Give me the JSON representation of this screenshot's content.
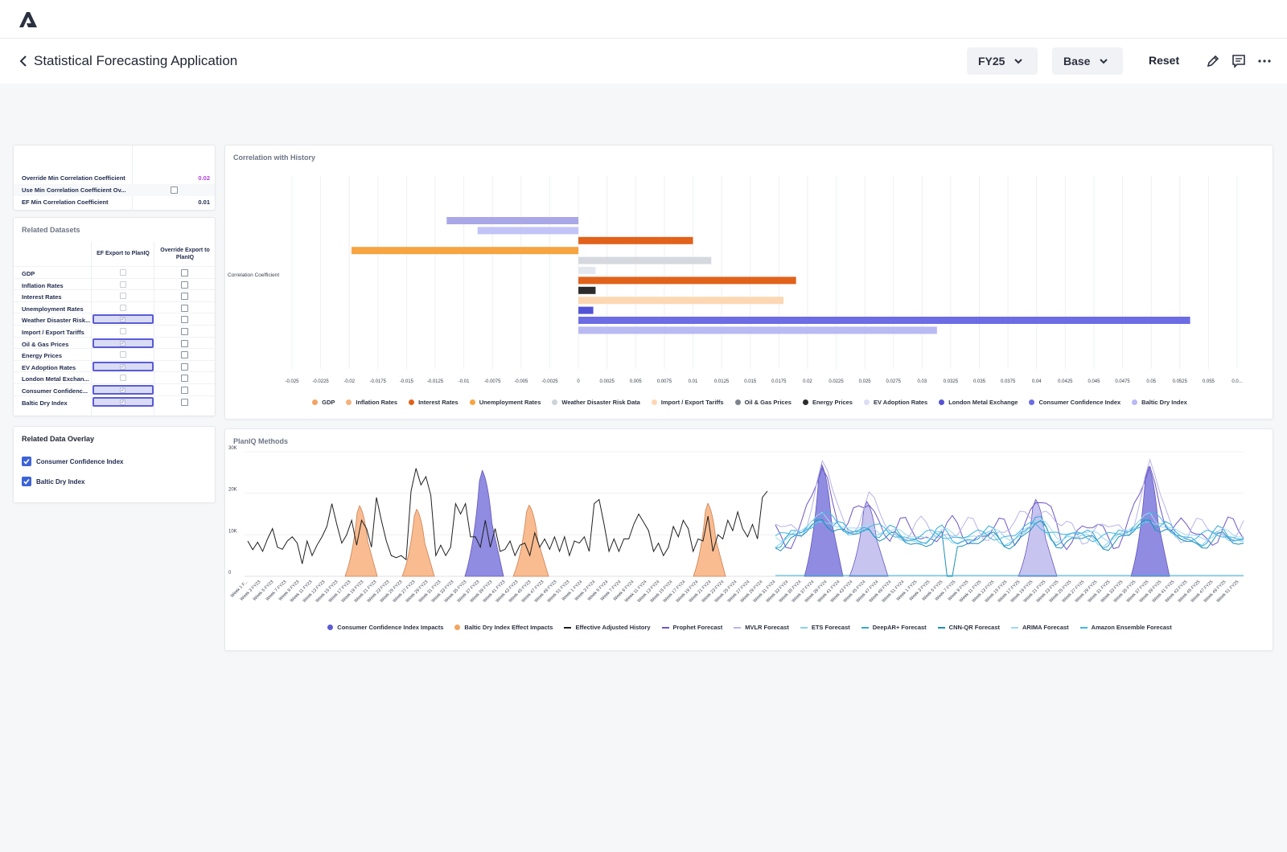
{
  "header": {
    "logo_icon": "company-logo-icon",
    "title": "Statistical Forecasting Application",
    "fiscal_year": "FY25",
    "scenario": "Base",
    "reset_label": "Reset",
    "icons": [
      "edit-pencil-icon",
      "comment-icon",
      "more-options-icon"
    ]
  },
  "settings": {
    "rows": [
      {
        "label": "Override Min Correlation Coefficient",
        "value": "0.02",
        "value_color": "#b13fd6"
      },
      {
        "label": "Use Min Correlation Coefficient Ov...",
        "value": "",
        "checkbox": true
      },
      {
        "label": "EF Min Correlation Coefficient",
        "value": "0.01"
      }
    ]
  },
  "datasets": {
    "title": "Related Datasets",
    "col1": "EF Export to PlanIQ",
    "col2": "Override Export to PlanIQ",
    "rows": [
      {
        "name": "GDP",
        "ef_export": false
      },
      {
        "name": "Inflation Rates",
        "ef_export": false
      },
      {
        "name": "Interest Rates",
        "ef_export": false
      },
      {
        "name": "Unemployment Rates",
        "ef_export": false
      },
      {
        "name": "Weather Disaster Risk...",
        "ef_export": true
      },
      {
        "name": "Import / Export Tariffs",
        "ef_export": false
      },
      {
        "name": "Oil & Gas Prices",
        "ef_export": true
      },
      {
        "name": "Energy Prices",
        "ef_export": false
      },
      {
        "name": "EV Adoption Rates",
        "ef_export": true
      },
      {
        "name": "London Metal Exchan...",
        "ef_export": false
      },
      {
        "name": "Consumer Confidenc...",
        "ef_export": true
      },
      {
        "name": "Baltic Dry Index",
        "ef_export": true
      }
    ]
  },
  "overlay": {
    "title": "Related Data Overlay",
    "items": [
      {
        "label": "Consumer Confidence Index",
        "checked": true
      },
      {
        "label": "Baltic Dry Index",
        "checked": true
      }
    ]
  },
  "chart_data": [
    {
      "type": "bar",
      "orientation": "horizontal",
      "title": "Correlation with History",
      "ylabel": "Correlation Coefficient",
      "xlim": [
        -0.025,
        0.0575
      ],
      "ticks": [
        "-0.025",
        "-0.0225",
        "-0.02",
        "-0.0175",
        "-0.015",
        "-0.0125",
        "-0.01",
        "-0.0075",
        "-0.005",
        "-0.0025",
        "0",
        "0.0025",
        "0.005",
        "0.0075",
        "0.01",
        "0.0125",
        "0.015",
        "0.0175",
        "0.02",
        "0.0225",
        "0.025",
        "0.0275",
        "0.03",
        "0.0325",
        "0.035",
        "0.0375",
        "0.04",
        "0.0425",
        "0.045",
        "0.0475",
        "0.05",
        "0.0525",
        "0.055",
        "0.0..."
      ],
      "bars": [
        {
          "value": -0.0115,
          "color": "#a9a7e6"
        },
        {
          "value": -0.0088,
          "color": "#c2c4f7"
        },
        {
          "value": 0.01,
          "color": "#e0621b"
        },
        {
          "value": -0.0198,
          "color": "#f7a441"
        },
        {
          "value": 0.0116,
          "color": "#d5d9df"
        },
        {
          "value": 0.0015,
          "color": "#e4e7ee"
        },
        {
          "value": 0.019,
          "color": "#e0621b"
        },
        {
          "value": 0.0015,
          "color": "#2b2b2b"
        },
        {
          "value": 0.0179,
          "color": "#fcd7b3"
        },
        {
          "value": 0.0013,
          "color": "#5353d6"
        },
        {
          "value": 0.0534,
          "color": "#6c6ce4"
        },
        {
          "value": 0.0313,
          "color": "#b9b9f4"
        }
      ],
      "legend": [
        {
          "name": "GDP",
          "color": "#f4a261"
        },
        {
          "name": "Inflation Rates",
          "color": "#f6b27a"
        },
        {
          "name": "Interest Rates",
          "color": "#e0621b"
        },
        {
          "name": "Unemployment Rates",
          "color": "#f7a441"
        },
        {
          "name": "Weather Disaster Risk Data",
          "color": "#ced3da"
        },
        {
          "name": "Import / Export Tariffs",
          "color": "#fcd7b3"
        },
        {
          "name": "Oil & Gas Prices",
          "color": "#7d828c"
        },
        {
          "name": "Energy Prices",
          "color": "#2b2b2b"
        },
        {
          "name": "EV Adoption Rates",
          "color": "#dcdcf5"
        },
        {
          "name": "London Metal Exchange",
          "color": "#5353d6"
        },
        {
          "name": "Consumer Confidence Index",
          "color": "#6c6ce4"
        },
        {
          "name": "Baltic Dry Index",
          "color": "#b9b9f4"
        }
      ]
    },
    {
      "type": "line",
      "title": "PlanIQ Methods",
      "ylim": [
        0,
        30000
      ],
      "yticks": [
        {
          "v": 0,
          "label": "0"
        },
        {
          "v": 10000,
          "label": "10K"
        },
        {
          "v": 20000,
          "label": "20K"
        },
        {
          "v": 30000,
          "label": "30K"
        }
      ],
      "x_labels": [
        "Week 1 F...",
        "Week 3 FY23",
        "Week 5 FY23",
        "Week 7 FY23",
        "Week 9 FY23",
        "Week 11 FY23",
        "Week 13 FY23",
        "Week 15 FY23",
        "Week 17 FY23",
        "Week 19 FY23",
        "Week 21 FY23",
        "Week 23 FY23",
        "Week 25 FY23",
        "Week 27 FY23",
        "Week 29 FY23",
        "Week 31 FY23",
        "Week 33 FY23",
        "Week 35 FY23",
        "Week 37 FY23",
        "Week 39 FY23",
        "Week 41 FY23",
        "Week 43 FY23",
        "Week 45 FY23",
        "Week 47 FY23",
        "Week 49 FY23",
        "Week 51 FY23",
        "Week 1 FY24",
        "Week 3 FY24",
        "Week 5 FY24",
        "Week 7 FY24",
        "Week 9 FY24",
        "Week 11 FY24",
        "Week 13 FY24",
        "Week 15 FY24",
        "Week 17 FY24",
        "Week 19 FY24",
        "Week 21 FY24",
        "Week 23 FY24",
        "Week 25 FY24",
        "Week 27 FY24",
        "Week 29 FY24",
        "Week 31 FY24",
        "Week 33 FY24",
        "Week 35 FY24",
        "Week 37 FY24",
        "Week 39 FY24",
        "Week 41 FY24",
        "Week 43 FY24",
        "Week 45 FY24",
        "Week 47 FY24",
        "Week 49 FY24",
        "Week 51 FY24",
        "Week 1 FY25",
        "Week 3 FY25",
        "Week 5 FY25",
        "Week 7 FY25",
        "Week 9 FY25",
        "Week 11 FY25",
        "Week 13 FY25",
        "Week 15 FY25",
        "Week 17 FY25",
        "Week 19 FY25",
        "Week 21 FY25",
        "Week 23 FY25",
        "Week 25 FY25",
        "Week 27 FY25",
        "Week 29 FY25",
        "Week 31 FY25",
        "Week 33 FY25",
        "Week 35 FY25",
        "Week 37 FY25",
        "Week 39 FY25",
        "Week 41 FY25",
        "Week 43 FY25",
        "Week 45 FY25",
        "Week 47 FY25",
        "Week 49 FY25",
        "Week 51 FY25"
      ],
      "history": [
        8500,
        6400,
        8200,
        6000,
        9000,
        11500,
        7000,
        6500,
        8500,
        9500,
        8000,
        3000,
        8500,
        5000,
        7500,
        9500,
        12000,
        17500,
        12500,
        8000,
        10000,
        13500,
        7500,
        13500,
        11500,
        7000,
        19000,
        13500,
        8500,
        5000,
        4500,
        5000,
        4000,
        20500,
        26000,
        22000,
        24000,
        19500,
        5000,
        7500,
        5000,
        7000,
        17500,
        15000,
        17500,
        9500,
        9500,
        7000,
        13500,
        7000,
        11500,
        6000,
        6500,
        8500,
        5000,
        7500,
        8000,
        5000,
        10500,
        7000,
        9000,
        6500,
        9500,
        6000,
        9500,
        5000,
        8500,
        8000,
        9500,
        6000,
        17500,
        18500,
        12500,
        6000,
        9000,
        6000,
        9000,
        9000,
        12500,
        15000,
        13000,
        11000,
        6000,
        8000,
        5000,
        7000,
        12000,
        9500,
        13500,
        11500,
        6000,
        9000,
        8500,
        14500,
        6000,
        10000,
        9000,
        13500,
        11000,
        15500,
        11500,
        9500,
        12500,
        9000,
        19000,
        20500
      ],
      "forecast_start": 0.515,
      "series": [
        {
          "name": "Consumer Confidence Index Impacts",
          "color": "#5b5bd6",
          "kind": "dot"
        },
        {
          "name": "Baltic Dry Index Effect Impacts",
          "color": "#f5a45e",
          "kind": "dot"
        },
        {
          "name": "Effective Adjusted History",
          "color": "#1f1f1f",
          "kind": "line"
        },
        {
          "name": "Prophet Forecast",
          "color": "#6f55c7",
          "kind": "line"
        },
        {
          "name": "MVLR Forecast",
          "color": "#b9b3e8",
          "kind": "line"
        },
        {
          "name": "ETS Forecast",
          "color": "#8ad0ec",
          "kind": "line"
        },
        {
          "name": "DeepAR+ Forecast",
          "color": "#36a9d6",
          "kind": "line"
        },
        {
          "name": "CNN-QR Forecast",
          "color": "#1e8fb8",
          "kind": "line"
        },
        {
          "name": "ARIMA Forecast",
          "color": "#9fd9f0",
          "kind": "line"
        },
        {
          "name": "Amazon Ensemble Forecast",
          "color": "#40b4e2",
          "kind": "line"
        }
      ]
    }
  ]
}
